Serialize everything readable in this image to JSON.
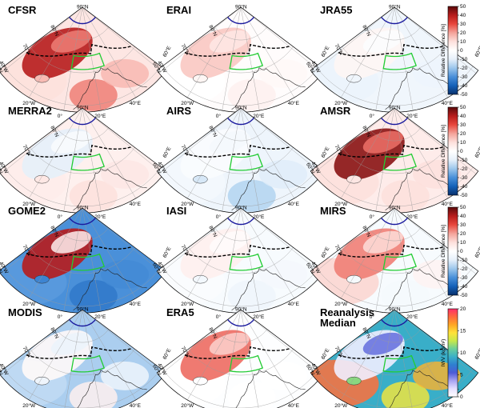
{
  "panels": [
    {
      "title": [
        "CFSR"
      ],
      "scheme": "diff",
      "field": {
        "base": 0.58,
        "ice": 0.9,
        "land": 0.74,
        "warm": 0.6
      }
    },
    {
      "title": [
        "ERAI"
      ],
      "scheme": "diff",
      "field": {
        "base": 0.51,
        "ice": 0.64,
        "land": 0.55,
        "warm": 0.5
      }
    },
    {
      "title": [
        "JRA55"
      ],
      "scheme": "diff",
      "field": {
        "base": 0.44,
        "ice": 0.53,
        "land": 0.44,
        "warm": 0.42
      }
    },
    {
      "title": [
        "MERRA2"
      ],
      "scheme": "diff",
      "field": {
        "base": 0.55,
        "ice": 0.4,
        "land": 0.6,
        "warm": 0.56
      }
    },
    {
      "title": [
        "AIRS"
      ],
      "scheme": "diff",
      "field": {
        "base": 0.43,
        "ice": 0.48,
        "land": 0.33,
        "warm": 0.45
      }
    },
    {
      "title": [
        "AMSR"
      ],
      "scheme": "diff",
      "field": {
        "base": 0.56,
        "ice": 0.95,
        "land": 0.6,
        "warm": 0.6
      }
    },
    {
      "title": [
        "GOME2"
      ],
      "scheme": "diff",
      "field": {
        "base": 0.2,
        "ice": 0.9,
        "land": 0.15,
        "warm": 0.22
      }
    },
    {
      "title": [
        "IASI"
      ],
      "scheme": "diff",
      "field": {
        "base": 0.47,
        "ice": 0.55,
        "land": 0.43,
        "warm": 0.48
      }
    },
    {
      "title": [
        "MIRS"
      ],
      "scheme": "diff",
      "field": {
        "base": 0.47,
        "ice": 0.74,
        "land": 0.46,
        "warm": 0.62
      }
    },
    {
      "title": [
        "MODIS"
      ],
      "scheme": "diff",
      "field": {
        "base": 0.32,
        "ice": 0.52,
        "land": 0.55,
        "warm": 0.35
      }
    },
    {
      "title": [
        "ERA5"
      ],
      "scheme": "diff",
      "field": {
        "base": 0.49,
        "ice": 0.76,
        "land": 0.5,
        "warm": 0.5
      }
    },
    {
      "title": [
        "Reanalysis",
        "Median"
      ],
      "scheme": "iwv",
      "field": {
        "base": 0.45,
        "ice": 0.05,
        "land": 0.7,
        "warm": 0.9
      }
    }
  ],
  "map_labels": {
    "pole": "90°N",
    "lat80": "80°N",
    "lat70": "70°N",
    "lat60": "60°N",
    "lon40w": "40°W",
    "lon20w": "20°W",
    "lon0": "0°",
    "lon20e": "20°E",
    "lon40e": "40°E",
    "lon60e": "60°E"
  },
  "colorbars": [
    {
      "label": "Relative Difference [%]",
      "ticks": [
        "50",
        "40",
        "30",
        "20",
        "10",
        "0",
        "-10",
        "-20",
        "-30",
        "-40",
        "-50"
      ],
      "scheme": "diff"
    },
    {
      "label": "Relative Difference [%]",
      "ticks": [
        "50",
        "40",
        "30",
        "20",
        "10",
        "0",
        "-10",
        "-20",
        "-30",
        "-40",
        "-50"
      ],
      "scheme": "diff"
    },
    {
      "label": "Relative Difference [%]",
      "ticks": [
        "50",
        "40",
        "30",
        "20",
        "10",
        "0",
        "-10",
        "-20",
        "-30",
        "-40",
        "-50"
      ],
      "scheme": "diff"
    },
    {
      "label": "IWV (kg/m²)",
      "ticks": [
        "20",
        "15",
        "10",
        "5",
        "0"
      ],
      "scheme": "iwv"
    }
  ],
  "colors": {
    "diff": [
      "#08306b",
      "#1561b8",
      "#4a90d9",
      "#9cc6ec",
      "#e6f0fa",
      "#ffffff",
      "#fde0dc",
      "#f4a39a",
      "#e8473d",
      "#b71c1c",
      "#5a0a0a"
    ],
    "iwv": [
      "#ffffff",
      "#e6e0ff",
      "#a8a4f2",
      "#4d5bd6",
      "#2f7fd0",
      "#3ab0c8",
      "#6ccf9a",
      "#c8e84a",
      "#ffe23a",
      "#ffa726",
      "#ff6a3d",
      "#ff2e6a"
    ],
    "box": "#22cc33",
    "arc": "#1a1a9e"
  }
}
